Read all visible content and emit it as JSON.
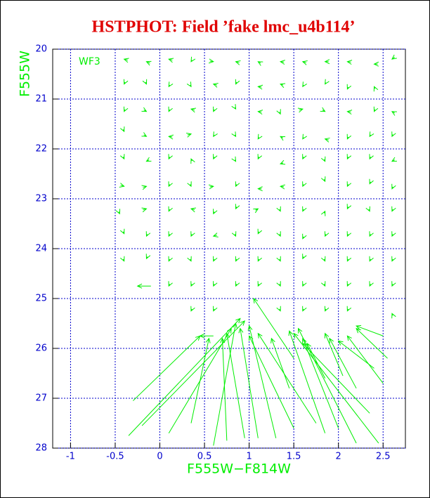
{
  "chart_data": {
    "type": "vector",
    "title": "HSTPHOT: Field ’fake lmc_u4b114’",
    "x_label": "F555W−F814W",
    "y_label": "F555W",
    "annotation": "WF3",
    "color": "#00ee00",
    "grid": true,
    "y_inverted": true,
    "xlim": [
      -1.2,
      2.75
    ],
    "ylim": [
      20,
      28
    ],
    "xticks": [
      -1,
      -0.5,
      0,
      0.5,
      1,
      1.5,
      2,
      2.5
    ],
    "yticks": [
      20,
      21,
      22,
      23,
      24,
      25,
      26,
      27,
      28
    ],
    "arrows": [
      [
        -0.4,
        20.2,
        -0.36,
        20.22
      ],
      [
        -0.15,
        20.25,
        -0.11,
        20.28
      ],
      [
        0.1,
        20.2,
        0.14,
        20.22
      ],
      [
        0.35,
        20.25,
        0.36,
        20.22
      ],
      [
        0.6,
        20.25,
        0.56,
        20.24
      ],
      [
        0.85,
        20.25,
        0.89,
        20.27
      ],
      [
        1.1,
        20.25,
        1.13,
        20.28
      ],
      [
        1.35,
        20.25,
        1.39,
        20.26
      ],
      [
        1.6,
        20.25,
        1.64,
        20.27
      ],
      [
        1.85,
        20.25,
        1.89,
        20.25
      ],
      [
        2.1,
        20.25,
        2.14,
        20.26
      ],
      [
        2.4,
        20.3,
        2.44,
        20.3
      ],
      [
        2.6,
        20.2,
        2.63,
        20.16
      ],
      [
        -0.4,
        20.7,
        -0.39,
        20.66
      ],
      [
        -0.15,
        20.7,
        -0.16,
        20.66
      ],
      [
        0.1,
        20.75,
        0.11,
        20.72
      ],
      [
        0.35,
        20.75,
        0.34,
        20.72
      ],
      [
        0.6,
        20.7,
        0.64,
        20.72
      ],
      [
        0.85,
        20.7,
        0.86,
        20.66
      ],
      [
        1.1,
        20.75,
        1.14,
        20.76
      ],
      [
        1.35,
        20.7,
        1.38,
        20.72
      ],
      [
        1.6,
        20.75,
        1.61,
        20.72
      ],
      [
        1.85,
        20.7,
        1.86,
        20.67
      ],
      [
        2.1,
        20.8,
        2.11,
        20.76
      ],
      [
        2.4,
        20.75,
        2.41,
        20.79
      ],
      [
        -0.4,
        21.25,
        -0.39,
        21.21
      ],
      [
        -0.15,
        21.25,
        -0.18,
        21.22
      ],
      [
        0.1,
        21.25,
        0.11,
        21.21
      ],
      [
        0.35,
        21.2,
        0.39,
        21.22
      ],
      [
        0.6,
        21.25,
        0.61,
        21.21
      ],
      [
        0.85,
        21.2,
        0.84,
        21.17
      ],
      [
        1.1,
        21.25,
        1.14,
        21.26
      ],
      [
        1.35,
        21.3,
        1.34,
        21.26
      ],
      [
        1.6,
        21.2,
        1.56,
        21.22
      ],
      [
        1.85,
        21.25,
        1.82,
        21.22
      ],
      [
        2.1,
        21.25,
        2.14,
        21.26
      ],
      [
        2.4,
        21.25,
        2.41,
        21.21
      ],
      [
        2.6,
        21.25,
        2.63,
        21.28
      ],
      [
        -0.4,
        21.65,
        -0.41,
        21.61
      ],
      [
        -0.15,
        21.75,
        -0.18,
        21.72
      ],
      [
        0.1,
        21.75,
        0.14,
        21.76
      ],
      [
        0.35,
        21.7,
        0.31,
        21.72
      ],
      [
        0.6,
        21.75,
        0.61,
        21.72
      ],
      [
        0.85,
        21.75,
        0.84,
        21.72
      ],
      [
        1.1,
        21.8,
        1.11,
        21.77
      ],
      [
        1.35,
        21.75,
        1.38,
        21.78
      ],
      [
        1.6,
        21.8,
        1.61,
        21.77
      ],
      [
        1.85,
        21.8,
        1.89,
        21.82
      ],
      [
        2.1,
        21.8,
        2.11,
        21.76
      ],
      [
        2.35,
        21.75,
        2.36,
        21.72
      ],
      [
        2.6,
        21.75,
        2.61,
        21.71
      ],
      [
        -0.4,
        22.2,
        -0.41,
        22.16
      ],
      [
        -0.15,
        22.25,
        -0.12,
        22.22
      ],
      [
        0.1,
        22.2,
        0.11,
        22.16
      ],
      [
        0.35,
        22.2,
        0.36,
        22.24
      ],
      [
        0.6,
        22.2,
        0.61,
        22.16
      ],
      [
        0.85,
        22.25,
        0.84,
        22.22
      ],
      [
        1.1,
        22.2,
        1.11,
        22.16
      ],
      [
        1.35,
        22.3,
        1.38,
        22.28
      ],
      [
        1.6,
        22.2,
        1.61,
        22.16
      ],
      [
        1.85,
        22.25,
        1.84,
        22.21
      ],
      [
        2.1,
        22.2,
        2.11,
        22.16
      ],
      [
        2.35,
        22.2,
        2.36,
        22.16
      ],
      [
        2.6,
        22.25,
        2.63,
        22.22
      ],
      [
        -0.4,
        22.75,
        -0.44,
        22.73
      ],
      [
        -0.15,
        22.75,
        -0.19,
        22.77
      ],
      [
        0.1,
        22.75,
        0.11,
        22.71
      ],
      [
        0.35,
        22.75,
        0.34,
        22.71
      ],
      [
        0.6,
        22.75,
        0.56,
        22.76
      ],
      [
        0.85,
        22.75,
        0.86,
        22.71
      ],
      [
        1.1,
        22.8,
        1.14,
        22.8
      ],
      [
        1.35,
        22.75,
        1.39,
        22.76
      ],
      [
        1.6,
        22.75,
        1.61,
        22.71
      ],
      [
        1.85,
        22.65,
        1.84,
        22.61
      ],
      [
        2.1,
        22.75,
        2.11,
        22.71
      ],
      [
        2.35,
        22.7,
        2.36,
        22.66
      ],
      [
        2.6,
        22.8,
        2.61,
        22.76
      ],
      [
        -0.45,
        23.3,
        -0.46,
        23.26
      ],
      [
        -0.15,
        23.2,
        -0.19,
        23.22
      ],
      [
        0.1,
        23.25,
        0.11,
        23.21
      ],
      [
        0.35,
        23.2,
        0.39,
        23.22
      ],
      [
        0.6,
        23.3,
        0.61,
        23.26
      ],
      [
        0.85,
        23.2,
        0.86,
        23.16
      ],
      [
        1.1,
        23.2,
        1.07,
        23.23
      ],
      [
        1.35,
        23.25,
        1.34,
        23.21
      ],
      [
        1.6,
        23.25,
        1.61,
        23.21
      ],
      [
        1.85,
        23.25,
        1.84,
        23.29
      ],
      [
        2.1,
        23.2,
        2.11,
        23.16
      ],
      [
        2.35,
        23.25,
        2.34,
        23.21
      ],
      [
        2.6,
        23.25,
        2.61,
        23.21
      ],
      [
        -0.4,
        23.7,
        -0.41,
        23.66
      ],
      [
        -0.15,
        23.75,
        -0.14,
        23.71
      ],
      [
        0.1,
        23.75,
        0.11,
        23.71
      ],
      [
        0.35,
        23.75,
        0.36,
        23.71
      ],
      [
        0.6,
        23.75,
        0.64,
        23.73
      ],
      [
        0.85,
        23.75,
        0.84,
        23.71
      ],
      [
        1.1,
        23.7,
        1.11,
        23.66
      ],
      [
        1.35,
        23.75,
        1.34,
        23.71
      ],
      [
        1.6,
        23.8,
        1.61,
        23.76
      ],
      [
        1.85,
        23.75,
        1.86,
        23.71
      ],
      [
        2.1,
        23.75,
        2.11,
        23.71
      ],
      [
        2.35,
        23.75,
        2.36,
        23.71
      ],
      [
        2.6,
        23.75,
        2.61,
        23.71
      ],
      [
        -0.4,
        24.25,
        -0.41,
        24.21
      ],
      [
        -0.15,
        24.2,
        -0.14,
        24.16
      ],
      [
        0.1,
        24.25,
        0.11,
        24.21
      ],
      [
        0.35,
        24.25,
        0.34,
        24.21
      ],
      [
        0.6,
        24.25,
        0.61,
        24.21
      ],
      [
        0.85,
        24.25,
        0.86,
        24.21
      ],
      [
        1.1,
        24.25,
        1.11,
        24.21
      ],
      [
        1.35,
        24.25,
        1.34,
        24.21
      ],
      [
        1.6,
        24.2,
        1.61,
        24.16
      ],
      [
        1.85,
        24.25,
        1.84,
        24.21
      ],
      [
        2.1,
        24.25,
        2.11,
        24.21
      ],
      [
        2.35,
        24.25,
        2.36,
        24.21
      ],
      [
        2.6,
        24.25,
        2.61,
        24.21
      ],
      [
        -0.25,
        24.75,
        -0.1,
        24.75
      ],
      [
        0.1,
        24.75,
        0.11,
        24.71
      ],
      [
        0.35,
        24.75,
        0.36,
        24.71
      ],
      [
        0.6,
        24.75,
        0.61,
        24.71
      ],
      [
        0.85,
        24.75,
        0.86,
        24.71
      ],
      [
        1.1,
        24.75,
        1.11,
        24.71
      ],
      [
        1.35,
        24.75,
        1.34,
        24.71
      ],
      [
        1.6,
        24.75,
        1.61,
        24.71
      ],
      [
        1.85,
        24.75,
        1.84,
        24.71
      ],
      [
        2.1,
        24.75,
        2.11,
        24.71
      ],
      [
        2.35,
        24.75,
        2.36,
        24.71
      ],
      [
        2.6,
        24.75,
        2.61,
        24.71
      ],
      [
        0.35,
        25.25,
        0.36,
        25.21
      ],
      [
        0.6,
        25.25,
        0.61,
        25.21
      ],
      [
        1.35,
        25.25,
        1.34,
        25.21
      ],
      [
        1.6,
        25.25,
        1.61,
        25.21
      ],
      [
        1.85,
        25.25,
        1.86,
        25.21
      ],
      [
        2.1,
        25.25,
        2.11,
        25.21
      ],
      [
        2.6,
        25.3,
        2.61,
        25.34
      ],
      [
        0.9,
        25.4,
        -0.35,
        27.75
      ],
      [
        0.95,
        25.45,
        -0.2,
        27.55
      ],
      [
        0.8,
        25.6,
        0.1,
        27.7
      ],
      [
        0.45,
        25.75,
        -0.3,
        27.05
      ],
      [
        0.55,
        25.8,
        0.35,
        27.5
      ],
      [
        0.7,
        25.8,
        0.75,
        27.85
      ],
      [
        0.85,
        25.5,
        0.6,
        27.95
      ],
      [
        0.75,
        25.7,
        0.95,
        27.8
      ],
      [
        0.9,
        25.6,
        1.1,
        27.8
      ],
      [
        1.0,
        25.55,
        1.3,
        27.8
      ],
      [
        1.05,
        25.0,
        1.5,
        26.2
      ],
      [
        1.0,
        25.75,
        1.5,
        27.6
      ],
      [
        1.1,
        25.7,
        1.75,
        27.5
      ],
      [
        1.5,
        25.7,
        2.45,
        27.9
      ],
      [
        1.55,
        25.6,
        2.2,
        27.9
      ],
      [
        1.6,
        25.8,
        2.0,
        27.6
      ],
      [
        1.45,
        25.65,
        1.85,
        27.7
      ],
      [
        1.6,
        25.9,
        2.35,
        27.3
      ],
      [
        1.9,
        25.8,
        2.2,
        26.8
      ],
      [
        2.1,
        25.75,
        2.5,
        26.7
      ],
      [
        2.2,
        25.6,
        2.55,
        26.2
      ],
      [
        2.2,
        25.55,
        2.5,
        25.75
      ],
      [
        1.85,
        25.7,
        2.05,
        26.55
      ],
      [
        2.0,
        25.85,
        2.4,
        26.4
      ],
      [
        1.25,
        25.8,
        1.45,
        26.8
      ],
      [
        1.65,
        25.9,
        1.85,
        26.6
      ],
      [
        0.45,
        25.75,
        0.6,
        25.75
      ]
    ]
  }
}
